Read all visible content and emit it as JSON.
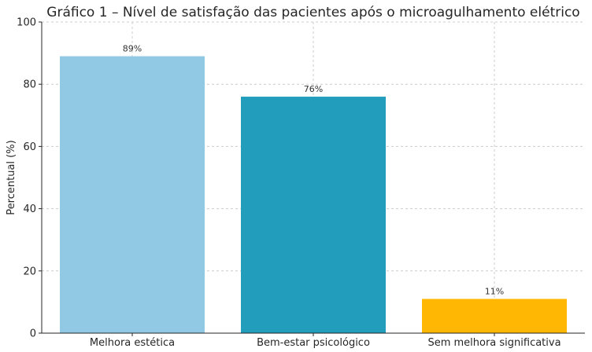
{
  "chart_data": {
    "type": "bar",
    "title": "Gráfico 1 – Nível de satisfação das pacientes após o microagulhamento elétrico",
    "xlabel": "",
    "ylabel": "Percentual (%)",
    "ylim": [
      0,
      100
    ],
    "yticks": [
      "0",
      "20",
      "40",
      "60",
      "80",
      "100"
    ],
    "grid": true,
    "categories": [
      "Melhora estética",
      "Bem-estar psicológico",
      "Sem melhora significativa"
    ],
    "values": [
      89,
      76,
      11
    ],
    "value_labels": [
      "89%",
      "76%",
      "11%"
    ],
    "colors": [
      "#91c9e5",
      "#229ebc",
      "#ffb703"
    ]
  }
}
